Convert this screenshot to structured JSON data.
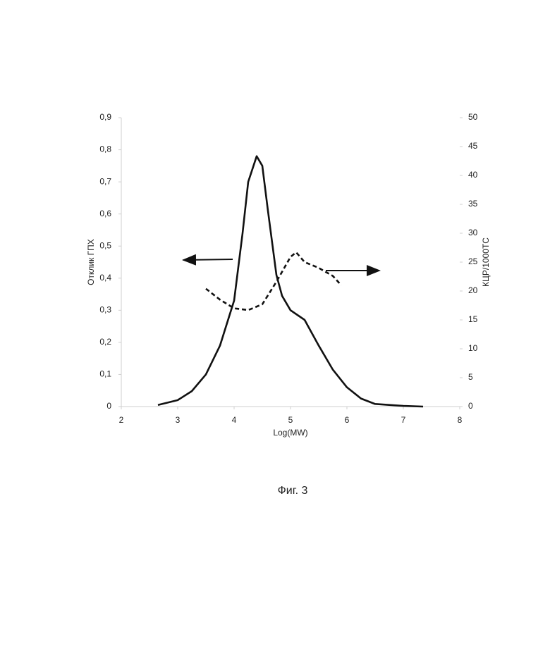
{
  "chart_data": {
    "type": "line",
    "x_label": "Log(MW)",
    "y_label": "Отклик ГПХ",
    "y2_label": "КЦР/1000ТС",
    "caption": "Фиг. 3",
    "xlim": [
      2,
      8
    ],
    "xticks": [
      2,
      3,
      4,
      5,
      6,
      7,
      8
    ],
    "ylim": [
      0,
      0.9
    ],
    "yticks": [
      0,
      {
        "value": 0.1,
        "label": "0,1"
      },
      {
        "value": 0.2,
        "label": "0,2"
      },
      {
        "value": 0.3,
        "label": "0,3"
      },
      {
        "value": 0.4,
        "label": "0,4"
      },
      {
        "value": 0.5,
        "label": "0,5"
      },
      {
        "value": 0.6,
        "label": "0,6"
      },
      {
        "value": 0.7,
        "label": "0,7"
      },
      {
        "value": 0.8,
        "label": "0,8"
      },
      {
        "value": 0.9,
        "label": "0,9"
      }
    ],
    "y2lim": [
      0,
      50
    ],
    "y2ticks": [
      0,
      5,
      10,
      15,
      20,
      25,
      30,
      35,
      40,
      45,
      50
    ],
    "series": [
      {
        "color": "#111111",
        "style": "solid",
        "x": [
          2.65,
          3.0,
          3.25,
          3.5,
          3.75,
          4.0,
          4.15,
          4.25,
          4.4,
          4.5,
          4.6,
          4.75,
          4.85,
          5.0,
          5.25,
          5.5,
          5.75,
          6.0,
          6.25,
          6.5,
          7.0,
          7.35
        ],
        "values": [
          0.005,
          0.02,
          0.048,
          0.1,
          0.19,
          0.33,
          0.54,
          0.7,
          0.78,
          0.75,
          0.61,
          0.41,
          0.345,
          0.3,
          0.27,
          0.19,
          0.115,
          0.06,
          0.025,
          0.008,
          0.002,
          0
        ]
      },
      {
        "color": "#111111",
        "style": "dashed",
        "axis": "y2",
        "x": [
          3.5,
          3.75,
          4.0,
          4.25,
          4.5,
          4.75,
          5.0,
          5.1,
          5.25,
          5.5,
          5.75,
          5.9
        ],
        "values": [
          20.4,
          18.5,
          17,
          16.7,
          17.7,
          21.6,
          25.9,
          26.7,
          25,
          24,
          22.6,
          21
        ]
      }
    ]
  }
}
